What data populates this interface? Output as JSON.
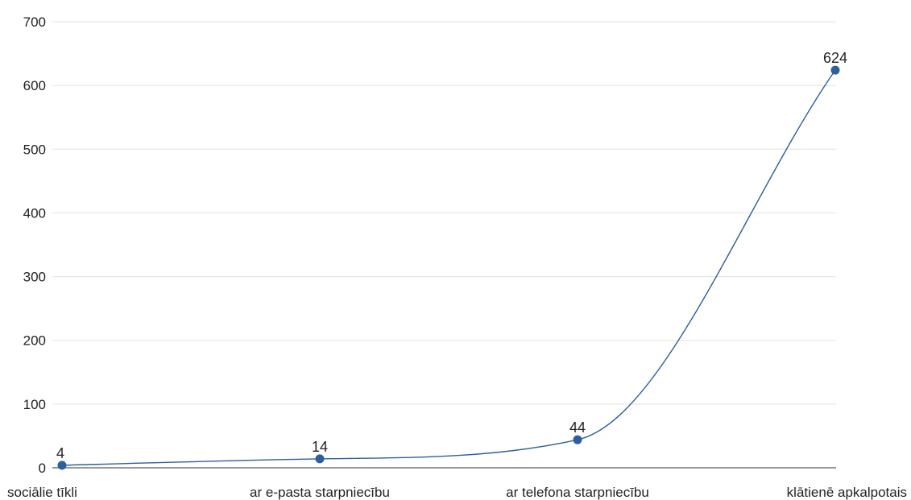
{
  "chart_data": {
    "type": "line",
    "title": "",
    "xlabel": "",
    "ylabel": "",
    "categories": [
      "sociālie tīkli",
      "ar e-pasta starpniecību",
      "ar telefona starpniecību",
      "klātienē apkalpotais"
    ],
    "series": [
      {
        "values": [
          4,
          14,
          44,
          624
        ],
        "color": "#2b5fa0"
      }
    ],
    "data_labels": [
      "4",
      "14",
      "44",
      "624"
    ],
    "ylim": [
      0,
      700
    ],
    "yticks": [
      0,
      100,
      200,
      300,
      400,
      500,
      600,
      700
    ],
    "ytick_labels": [
      "0",
      "100",
      "200",
      "300",
      "400",
      "500",
      "600",
      "700"
    ],
    "grid": true,
    "legend": "none",
    "curve": "smooth"
  }
}
